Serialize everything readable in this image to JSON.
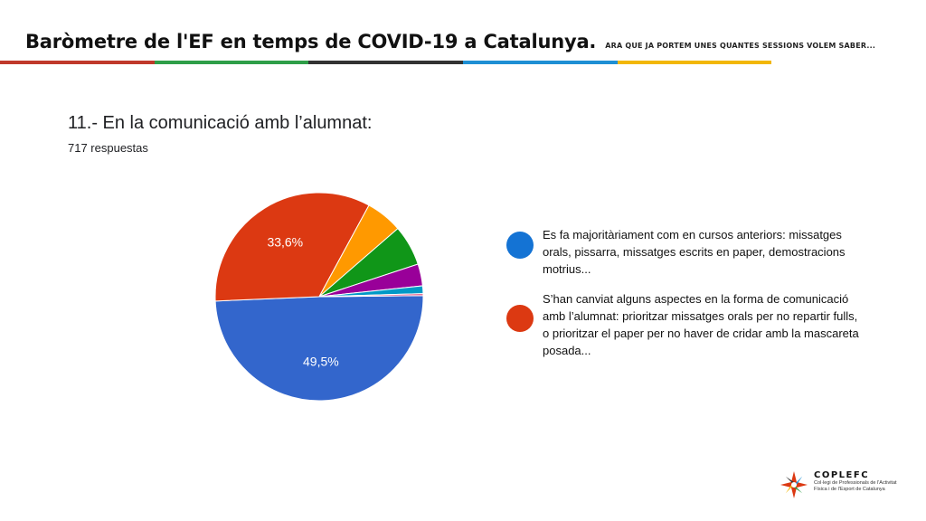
{
  "header": {
    "title": "Baròmetre de l'EF en temps de COVID-19 a Catalunya.",
    "subtitle": "ARA QUE JA PORTEM UNES QUANTES SESSIONS VOLEM SABER..."
  },
  "header_bar_colors": [
    "#c0392b",
    "#2e9e48",
    "#333333",
    "#1e8fd4",
    "#f2b705",
    "#ffffff"
  ],
  "question": "11.- En la comunicació amb l’alumnat:",
  "responses": "717 respuestas",
  "chart_data": {
    "type": "pie",
    "title": "",
    "slices": [
      {
        "label": "Es fa majoritàriament com en cursos anteriors: missatges orals, pissarra, missatges escrits en paper, demostracions motrius...",
        "value": 49.5,
        "display": "49,5%",
        "color": "#3366cc"
      },
      {
        "label": "S’han canviat alguns aspectes en la forma de comunicació amb l’alumnat: prioritzar missatges orals per no repartir fulls, o prioritzar el paper per no haver de cridar amb la mascareta posada...",
        "value": 33.6,
        "display": "33,6%",
        "color": "#dc3912"
      },
      {
        "label": "",
        "value": 5.7,
        "display": "",
        "color": "#ff9900"
      },
      {
        "label": "",
        "value": 6.3,
        "display": "",
        "color": "#109618"
      },
      {
        "label": "",
        "value": 3.4,
        "display": "",
        "color": "#990099"
      },
      {
        "label": "",
        "value": 1.2,
        "display": "",
        "color": "#0099c6"
      },
      {
        "label": "",
        "value": 0.3,
        "display": "",
        "color": "#dd4477"
      }
    ],
    "legend_placement": "right"
  },
  "legend": [
    {
      "text": "Es fa majoritàriament com en cursos anteriors: missatges orals, pissarra, missatges escrits en paper, demostracions motrius...",
      "color": "#1473d4"
    },
    {
      "text": "S’han canviat alguns aspectes en la forma de comunicació amb l’alumnat: prioritzar missatges orals per no repartir fulls, o prioritzar el paper per no haver de cridar amb la mascareta posada...",
      "color": "#dc3912"
    }
  ],
  "logo": {
    "name": "COPLEFC",
    "subtitle": "Col·legi de Professionals de l'Activitat Física i de l'Esport de Catalunya"
  }
}
